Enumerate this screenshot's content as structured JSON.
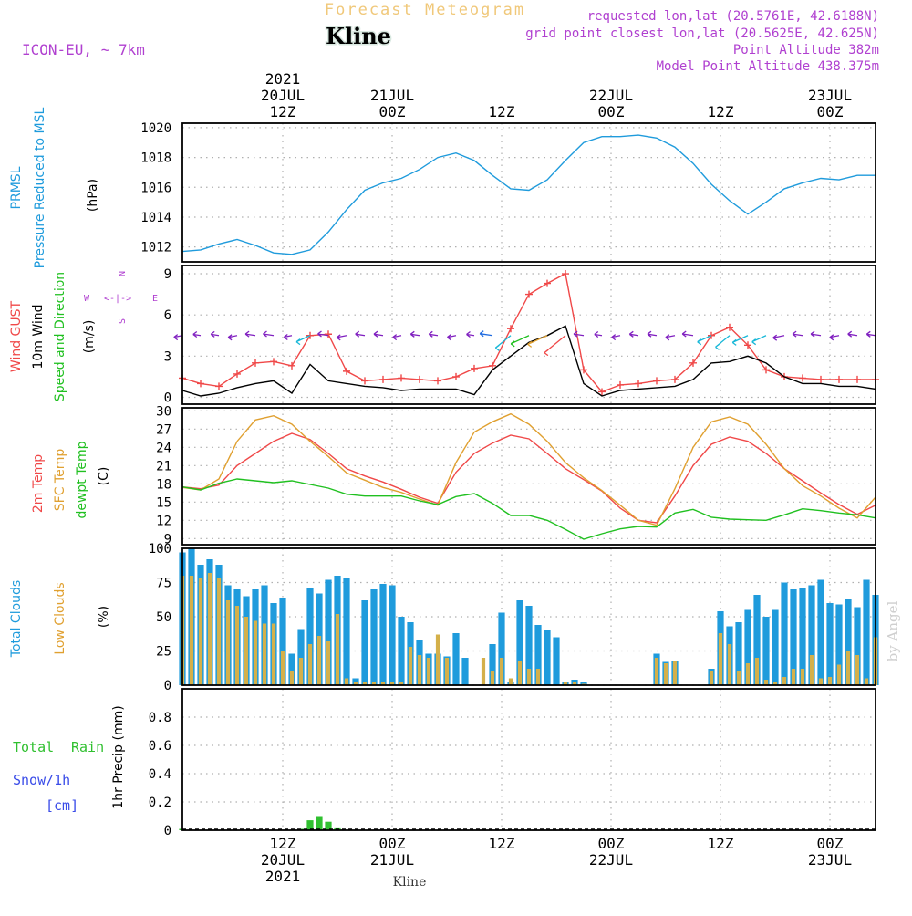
{
  "header": {
    "product": "Forecast Meteogram",
    "station": "Kline",
    "model": "ICON-EU, ~ 7km",
    "requested": "requested lon,lat (20.5761E, 42.6188N)",
    "gridpoint": "grid point closest lon,lat (20.5625E, 42.625N)",
    "point_alt": "Point Altitude 382m",
    "model_alt": "Model Point Altitude 438.375m",
    "footer_station": "Kline",
    "credit": "by Angel"
  },
  "colors": {
    "pressure": "#1f9bdc",
    "gust": "#f04848",
    "wind": "#000000",
    "wind_dir": "#20c020",
    "t2m": "#f04848",
    "tsfc": "#e0a030",
    "dewpt": "#20c020",
    "total_clouds": "#1f9bdc",
    "low_clouds": "#d4b04a",
    "rain": "#30c030",
    "snow": "#3a4ce8",
    "meta": "#b040d0"
  },
  "time_axis": {
    "top_year": "2021",
    "top_labels": [
      {
        "h": 12,
        "l1": "20JUL",
        "l2": "12Z"
      },
      {
        "h": 24,
        "l1": "21JUL",
        "l2": "00Z"
      },
      {
        "h": 36,
        "l1": "",
        "l2": "12Z"
      },
      {
        "h": 48,
        "l1": "22JUL",
        "l2": "00Z"
      },
      {
        "h": 60,
        "l1": "",
        "l2": "12Z"
      },
      {
        "h": 72,
        "l1": "23JUL",
        "l2": "00Z"
      }
    ],
    "bottom_labels": [
      {
        "h": 12,
        "l1": "12Z",
        "l2": "20JUL"
      },
      {
        "h": 24,
        "l1": "00Z",
        "l2": "21JUL"
      },
      {
        "h": 36,
        "l1": "12Z",
        "l2": ""
      },
      {
        "h": 48,
        "l1": "00Z",
        "l2": "22JUL"
      },
      {
        "h": 60,
        "l1": "12Z",
        "l2": ""
      },
      {
        "h": 72,
        "l1": "00Z",
        "l2": "23JUL"
      }
    ],
    "bottom_year": "2021",
    "start_hour": 1,
    "end_hour": 77
  },
  "chart_data": [
    {
      "type": "line",
      "title": "PRMSL Pressure Reduced to MSL",
      "label1": "PRMSL",
      "label2": "Pressure Reduced to MSL",
      "ylabel": "(hPa)",
      "ylim": [
        1011,
        1020.3
      ],
      "yticks": [
        1012,
        1014,
        1016,
        1018,
        1020
      ],
      "x_hours": [
        1,
        3,
        5,
        7,
        9,
        11,
        13,
        15,
        17,
        19,
        21,
        23,
        25,
        27,
        29,
        31,
        33,
        35,
        37,
        39,
        41,
        43,
        45,
        47,
        49,
        51,
        53,
        55,
        57,
        59,
        61,
        63,
        65,
        67,
        69,
        71,
        73,
        75,
        77
      ],
      "series": [
        {
          "name": "Pressure",
          "values": [
            1011.7,
            1011.8,
            1012.2,
            1012.5,
            1012.1,
            1011.6,
            1011.5,
            1011.8,
            1013.0,
            1014.5,
            1015.8,
            1016.3,
            1016.6,
            1017.2,
            1018.0,
            1018.3,
            1017.8,
            1016.8,
            1015.9,
            1015.8,
            1016.5,
            1017.8,
            1019.0,
            1019.4,
            1019.4,
            1019.5,
            1019.3,
            1018.7,
            1017.6,
            1016.2,
            1015.1,
            1014.2,
            1015.0,
            1015.9,
            1016.3,
            1016.6,
            1016.5,
            1016.8,
            1016.8
          ]
        }
      ]
    },
    {
      "type": "line",
      "title": "Wind GUST / 10m Wind Speed and Direction",
      "label1": "Wind GUST",
      "label2": "10m Wind",
      "label3": "Speed and Direction",
      "ylabel": "(m/s)",
      "ylim": [
        -0.5,
        9.6
      ],
      "yticks": [
        0,
        3,
        6,
        9
      ],
      "compass": {
        "n": "N",
        "s": "S",
        "w": "W",
        "e": "E",
        "arrows": "<-|->"
      },
      "x_hours": [
        1,
        3,
        5,
        7,
        9,
        11,
        13,
        15,
        17,
        19,
        21,
        23,
        25,
        27,
        29,
        31,
        33,
        35,
        37,
        39,
        41,
        43,
        45,
        47,
        49,
        51,
        53,
        55,
        57,
        59,
        61,
        63,
        65,
        67,
        69,
        71,
        73,
        75,
        77
      ],
      "series": [
        {
          "name": "Wind GUST",
          "values": [
            1.4,
            1.0,
            0.8,
            1.7,
            2.5,
            2.6,
            2.3,
            4.5,
            4.6,
            1.9,
            1.2,
            1.3,
            1.4,
            1.3,
            1.2,
            1.5,
            2.1,
            2.3,
            5.0,
            7.5,
            8.3,
            9.0,
            2.0,
            0.4,
            0.9,
            1.0,
            1.2,
            1.3,
            2.5,
            4.5,
            5.1,
            3.8,
            2.0,
            1.5,
            1.4,
            1.3,
            1.3,
            1.3,
            1.3
          ]
        },
        {
          "name": "10m Wind",
          "values": [
            0.5,
            0.1,
            0.3,
            0.7,
            1.0,
            1.2,
            0.3,
            2.4,
            1.2,
            1.0,
            0.8,
            0.7,
            0.5,
            0.6,
            0.6,
            0.6,
            0.2,
            2.0,
            3.0,
            4.0,
            4.5,
            5.2,
            1.0,
            0.1,
            0.5,
            0.6,
            0.7,
            0.8,
            1.3,
            2.5,
            2.6,
            3.0,
            2.5,
            1.5,
            1.0,
            1.0,
            0.8,
            0.8,
            0.6
          ]
        }
      ]
    },
    {
      "type": "line",
      "title": "2m Temp / SFC Temp / dewpt Temp",
      "label1": "2m Temp",
      "label2": "SFC Temp",
      "label3": "dewpt Temp",
      "ylabel": "(C)",
      "ylim": [
        8,
        30.5
      ],
      "yticks": [
        9,
        12,
        15,
        18,
        21,
        24,
        27,
        30
      ],
      "x_hours": [
        1,
        3,
        5,
        7,
        9,
        11,
        13,
        15,
        17,
        19,
        21,
        23,
        25,
        27,
        29,
        31,
        33,
        35,
        37,
        39,
        41,
        43,
        45,
        47,
        49,
        51,
        53,
        55,
        57,
        59,
        61,
        63,
        65,
        67,
        69,
        71,
        73,
        75,
        77
      ],
      "series": [
        {
          "name": "2m Temp",
          "values": [
            17.5,
            17.2,
            17.8,
            21.0,
            23.0,
            25.0,
            26.3,
            25.3,
            23.0,
            20.5,
            19.3,
            18.3,
            17.1,
            15.8,
            14.8,
            19.9,
            23.0,
            24.7,
            26.0,
            25.4,
            23.0,
            20.5,
            18.7,
            16.8,
            14.0,
            12.0,
            11.6,
            16.0,
            21.0,
            24.5,
            25.7,
            25.0,
            23.0,
            20.5,
            18.5,
            16.5,
            14.6,
            13.0,
            14.5
          ]
        },
        {
          "name": "SFC Temp",
          "values": [
            17.4,
            17.0,
            18.8,
            25.0,
            28.5,
            29.2,
            27.8,
            25.0,
            22.5,
            19.8,
            18.6,
            17.4,
            16.6,
            15.5,
            14.5,
            21.5,
            26.5,
            28.2,
            29.5,
            27.8,
            25.0,
            21.5,
            19.0,
            16.9,
            14.5,
            12.0,
            11.2,
            17.2,
            24.0,
            28.2,
            29.0,
            27.8,
            24.5,
            20.5,
            17.7,
            16.0,
            14.0,
            12.4,
            15.8
          ]
        },
        {
          "name": "dewpt Temp",
          "values": [
            17.5,
            17.0,
            18.1,
            18.8,
            18.5,
            18.2,
            18.5,
            17.9,
            17.3,
            16.3,
            16.0,
            16.0,
            16.0,
            15.2,
            14.6,
            15.9,
            16.4,
            14.8,
            12.8,
            12.8,
            12.0,
            10.5,
            8.9,
            9.8,
            10.6,
            11.0,
            10.9,
            13.2,
            13.8,
            12.5,
            12.2,
            12.1,
            12.0,
            12.9,
            13.9,
            13.6,
            13.2,
            12.9,
            12.4
          ]
        }
      ]
    },
    {
      "type": "bar",
      "title": "Total Clouds / Low Clouds",
      "label1": "Total Clouds",
      "label2": "Low Clouds",
      "ylabel": "(%)",
      "ylim": [
        0,
        100
      ],
      "yticks": [
        0,
        25,
        50,
        75,
        100
      ],
      "x_hours": [
        1,
        2,
        3,
        4,
        5,
        6,
        7,
        8,
        9,
        10,
        11,
        12,
        13,
        14,
        15,
        16,
        17,
        18,
        19,
        20,
        21,
        22,
        23,
        24,
        25,
        26,
        27,
        28,
        29,
        30,
        31,
        32,
        33,
        34,
        35,
        36,
        37,
        38,
        39,
        40,
        41,
        42,
        43,
        44,
        45,
        46,
        47,
        48,
        49,
        50,
        51,
        52,
        53,
        54,
        55,
        56,
        57,
        58,
        59,
        60,
        61,
        62,
        63,
        64,
        65,
        66,
        67,
        68,
        69,
        70,
        71,
        72,
        73,
        74,
        75,
        76,
        77
      ],
      "series": [
        {
          "name": "Total Clouds",
          "values": [
            97,
            100,
            88,
            92,
            88,
            73,
            70,
            65,
            70,
            73,
            60,
            64,
            23,
            41,
            71,
            67,
            77,
            80,
            78,
            5,
            62,
            70,
            74,
            73,
            50,
            46,
            33,
            23,
            23,
            21,
            38,
            20,
            0,
            0,
            30,
            53,
            2,
            62,
            58,
            44,
            40,
            35,
            2,
            4,
            2,
            0,
            0,
            0,
            0,
            0,
            0,
            0,
            23,
            17,
            18,
            0,
            0,
            0,
            12,
            54,
            43,
            46,
            55,
            66,
            50,
            55,
            75,
            70,
            71,
            73,
            77,
            60,
            59,
            63,
            57,
            77,
            66
          ]
        },
        {
          "name": "Low Clouds",
          "values": [
            80,
            80,
            78,
            82,
            78,
            62,
            58,
            50,
            47,
            45,
            45,
            25,
            10,
            20,
            30,
            36,
            32,
            52,
            5,
            2,
            2,
            2,
            2,
            2,
            2,
            28,
            22,
            20,
            37,
            20,
            0,
            0,
            0,
            20,
            10,
            20,
            5,
            18,
            12,
            12,
            0,
            0,
            2,
            2,
            1,
            0,
            0,
            0,
            0,
            0,
            0,
            0,
            20,
            16,
            18,
            0,
            0,
            0,
            10,
            38,
            30,
            10,
            16,
            20,
            4,
            2,
            6,
            12,
            12,
            22,
            5,
            6,
            15,
            25,
            22,
            5,
            35
          ]
        }
      ]
    },
    {
      "type": "bar",
      "title": "1hr Precip",
      "label1": "Total",
      "label2": "Rain",
      "label3": "Snow/1h",
      "label4": "[cm]",
      "ylabel": "1hr Precip (mm)",
      "ylim": [
        0,
        1
      ],
      "yticks": [
        0,
        0.2,
        0.4,
        0.6,
        0.8
      ],
      "x_hours": [
        1,
        14,
        15,
        16,
        17,
        18
      ],
      "series": [
        {
          "name": "Total Rain",
          "values": [
            0.01,
            0.01,
            0.07,
            0.1,
            0.06,
            0.02
          ]
        },
        {
          "name": "Snow/1h",
          "values": [
            0,
            0,
            0,
            0,
            0,
            0
          ]
        }
      ]
    }
  ]
}
